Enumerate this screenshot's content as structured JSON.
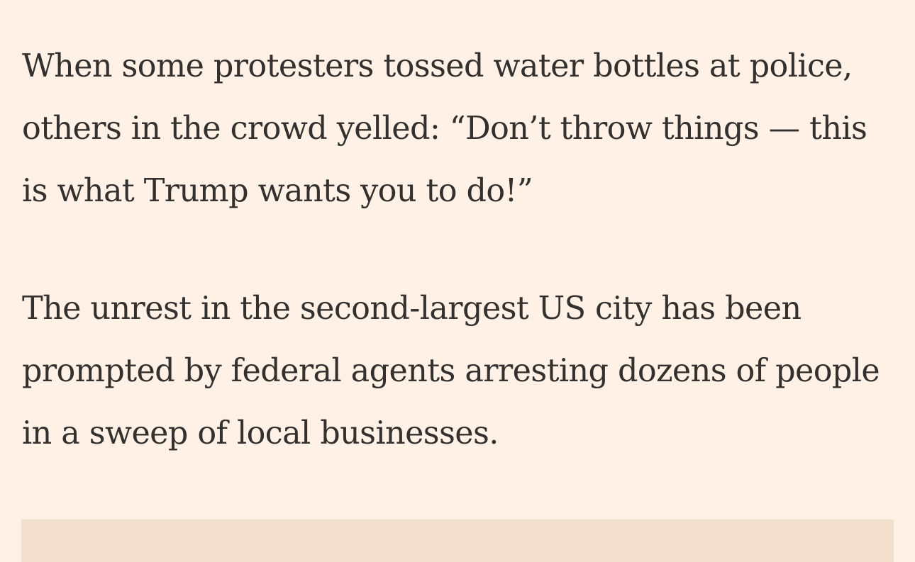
{
  "article": {
    "paragraphs": [
      "When some protesters tossed water bottles at police, others in the crowd yelled: “Don’t throw things — this is what Trump wants you to do!”",
      "The unrest in the second-largest US city has been prompted by federal agents arresting dozens of people in a sweep of local businesses."
    ]
  },
  "colors": {
    "background": "#FFF1E5",
    "text": "#33302E",
    "embed_background": "#F2DFCE"
  }
}
